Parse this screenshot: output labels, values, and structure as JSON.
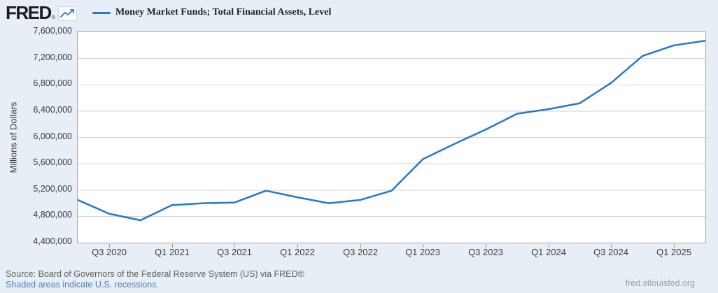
{
  "header": {
    "logo_text": "FRED",
    "logo_reg": "®"
  },
  "chart_data": {
    "type": "line",
    "title": "Money Market Funds; Total Financial Assets, Level",
    "ylabel": "Millions of Dollars",
    "x": [
      "2020 Q2",
      "2020 Q3",
      "2020 Q4",
      "2021 Q1",
      "2021 Q2",
      "2021 Q3",
      "2021 Q4",
      "2022 Q1",
      "2022 Q2",
      "2022 Q3",
      "2022 Q4",
      "2023 Q1",
      "2023 Q2",
      "2023 Q3",
      "2023 Q4",
      "2024 Q1",
      "2024 Q2",
      "2024 Q3",
      "2024 Q4",
      "2025 Q1",
      "2025 Q2"
    ],
    "values": [
      5050000,
      4840000,
      4740000,
      4970000,
      5000000,
      5010000,
      5190000,
      5090000,
      5000000,
      5050000,
      5190000,
      5670000,
      5900000,
      6120000,
      6360000,
      6430000,
      6520000,
      6830000,
      7240000,
      7400000,
      7470000
    ],
    "ylim": [
      4400000,
      7600000
    ],
    "ytick_step": 400000,
    "ytick_labels": [
      "7,600,000",
      "7,200,000",
      "6,800,000",
      "6,400,000",
      "6,000,000",
      "5,600,000",
      "5,200,000",
      "4,800,000",
      "4,400,000"
    ],
    "xtick_labels": [
      "Q3 2020",
      "Q1 2021",
      "Q3 2021",
      "Q1 2022",
      "Q3 2022",
      "Q1 2023",
      "Q3 2023",
      "Q1 2024",
      "Q3 2024",
      "Q1 2025"
    ],
    "xtick_indices": [
      1,
      3,
      5,
      7,
      9,
      11,
      13,
      15,
      17,
      19
    ],
    "grid": true,
    "legend_position": "top",
    "line_color": "#2478d2",
    "grid_color": "#d2d2d2"
  },
  "footer": {
    "source_line": "Source: Board of Governors of the Federal Reserve System (US) via FRED®",
    "recession_note": "Shaded areas indicate U.S. recessions.",
    "site_url": "fred.stlouisfed.org"
  },
  "colors": {
    "background": "#e7eef6",
    "plot_background": "#ffffff",
    "accent_blue": "#2478d2",
    "link_blue": "#4d7eb8"
  }
}
